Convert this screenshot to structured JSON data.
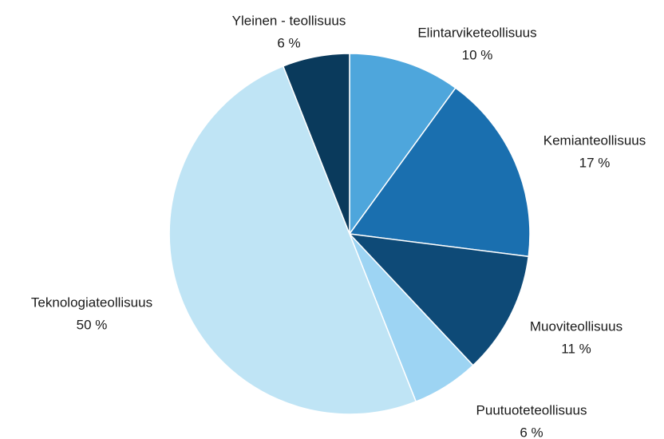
{
  "chart_data": {
    "type": "pie",
    "categories": [
      "Elintarviketeollisuus",
      "Kemianteollisuus",
      "Muoviteollisuus",
      "Puutuoteteollisuus",
      "Teknologiateollisuus",
      "Yleinen - teollisuus"
    ],
    "values": [
      10,
      17,
      11,
      6,
      50,
      6
    ],
    "value_labels": [
      "10 %",
      "17 %",
      "11 %",
      "6 %",
      "50 %",
      "6 %"
    ],
    "colors": [
      "#4ea6dc",
      "#1a6faf",
      "#0e4a77",
      "#9dd4f3",
      "#bfe4f5",
      "#0a3a5c"
    ]
  }
}
